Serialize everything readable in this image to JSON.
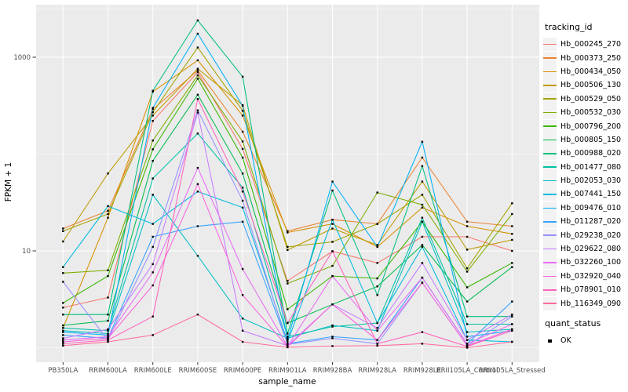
{
  "chart_data": {
    "type": "line",
    "title": "",
    "xlabel": "sample_name",
    "ylabel": "FPKM + 1",
    "y_scale": "log10",
    "ylim": [
      0.55,
      3400
    ],
    "y_ticks": [
      {
        "label": "10",
        "value": 10
      },
      {
        "label": "1000",
        "value": 1000
      }
    ],
    "y_minor_gridlines": [
      1,
      100,
      3162
    ],
    "grid": true,
    "panel_background": "#EBEBEB",
    "gridline_color": "#FFFFFF",
    "tick_text_color": "#4D4D4D",
    "point_color": "#000000",
    "point_shape": "square",
    "legend_title": "tracking_id",
    "legend_position": "right",
    "quant_legend": {
      "title": "quant_status",
      "items": [
        "OK"
      ]
    },
    "categories": [
      "PB350LA",
      "RRIM600LA",
      "RRIM600LE",
      "RRIM600SE",
      "RRIM600PE",
      "RRIM901LA",
      "RRIM928BA",
      "RRIM928LA",
      "RRIM928LE",
      "RRII105LA_Control",
      "RRII105LA_Stressed"
    ],
    "series": [
      {
        "name": "Hb_000245_270",
        "color": "#F8766D",
        "values": [
          2.6,
          3.3,
          220,
          700,
          113,
          4.9,
          9.9,
          7.5,
          14,
          14,
          10
        ]
      },
      {
        "name": "Hb_000373_250",
        "color": "#EA8331",
        "values": [
          17,
          26,
          290,
          730,
          170,
          16,
          21,
          19,
          92,
          20,
          18
        ]
      },
      {
        "name": "Hb_000434_050",
        "color": "#D89000",
        "values": [
          1.6,
          22,
          440,
          930,
          250,
          15.5,
          19,
          11,
          28,
          18,
          15
        ]
      },
      {
        "name": "Hb_000506_130",
        "color": "#C09B00",
        "values": [
          12.5,
          63,
          250,
          760,
          320,
          10.2,
          17,
          11.5,
          52,
          10.3,
          13
        ]
      },
      {
        "name": "Hb_000529_050",
        "color": "#A3A500",
        "values": [
          16,
          24,
          270,
          1260,
          280,
          11,
          12.4,
          19,
          38,
          6.6,
          31
        ]
      },
      {
        "name": "Hb_000532_030",
        "color": "#7CAE00",
        "values": [
          5.9,
          6.3,
          138,
          650,
          135,
          4.6,
          7,
          40,
          30,
          6.1,
          24
        ]
      },
      {
        "name": "Hb_000796_200",
        "color": "#39B600",
        "values": [
          2.9,
          5.5,
          112,
          600,
          92,
          2.5,
          5.5,
          5.2,
          20,
          4.2,
          7.5
        ]
      },
      {
        "name": "Hb_000805_150",
        "color": "#00BB4E",
        "values": [
          1.7,
          1.9,
          85,
          410,
          63,
          1.8,
          2.8,
          4.3,
          11.5,
          3.0,
          6.8
        ]
      },
      {
        "name": "Hb_000988_020",
        "color": "#00BF7D",
        "values": [
          2.2,
          2.2,
          450,
          2400,
          630,
          1.4,
          42,
          3.5,
          75,
          2.1,
          2.1
        ]
      },
      {
        "name": "Hb_001477_080",
        "color": "#00C1A3",
        "values": [
          1.6,
          1.5,
          56,
          163,
          45,
          1.3,
          1.65,
          1.8,
          22,
          1.75,
          1.75
        ]
      },
      {
        "name": "Hb_002053_030",
        "color": "#00BFC4",
        "values": [
          1.5,
          1.4,
          38,
          8.9,
          2.0,
          1.25,
          1.7,
          1.5,
          20,
          1.45,
          1.55
        ]
      },
      {
        "name": "Hb_007441_150",
        "color": "#00BAE0",
        "values": [
          6.8,
          29,
          19,
          41,
          28,
          1.15,
          21,
          1.8,
          11,
          1.2,
          1.15
        ]
      },
      {
        "name": "Hb_009476_010",
        "color": "#00B0F6",
        "values": [
          1.45,
          1.35,
          300,
          1750,
          315,
          1.2,
          52,
          11,
          134,
          1.3,
          1.5
        ]
      },
      {
        "name": "Hb_011287_020",
        "color": "#35A2FF",
        "values": [
          1.35,
          1.25,
          14,
          18,
          20,
          1.1,
          1.3,
          1.2,
          5.3,
          1.1,
          3.0
        ]
      },
      {
        "name": "Hb_029238_020",
        "color": "#9590FF",
        "values": [
          4.8,
          1.2,
          11,
          283,
          33,
          1.08,
          1.25,
          1.1,
          4.7,
          1.05,
          2.1
        ]
      },
      {
        "name": "Hb_029622_080",
        "color": "#C77CFF",
        "values": [
          1.25,
          1.55,
          7.3,
          268,
          1.5,
          1.05,
          2.8,
          1.6,
          7.5,
          1.2,
          2.2
        ]
      },
      {
        "name": "Hb_032260_100",
        "color": "#E76BF3",
        "values": [
          1.2,
          1.3,
          6,
          72,
          6.5,
          1.03,
          5.5,
          1.5,
          5.3,
          1.1,
          1.75
        ]
      },
      {
        "name": "Hb_032920_040",
        "color": "#FA62DB",
        "values": [
          1.15,
          1.25,
          4.4,
          49,
          3.5,
          1.02,
          2.8,
          1.2,
          4.7,
          1.05,
          1.55
        ]
      },
      {
        "name": "Hb_078901_010",
        "color": "#FF62BC",
        "values": [
          1.1,
          1.2,
          2.1,
          370,
          41,
          1.8,
          9.9,
          1.1,
          1.45,
          1.03,
          1.5
        ]
      },
      {
        "name": "Hb_116349_090",
        "color": "#FF6A98",
        "values": [
          1.05,
          1.15,
          1.35,
          2.2,
          1.15,
          1.01,
          1.04,
          1.05,
          1.1,
          1.0,
          1.15
        ]
      }
    ]
  }
}
